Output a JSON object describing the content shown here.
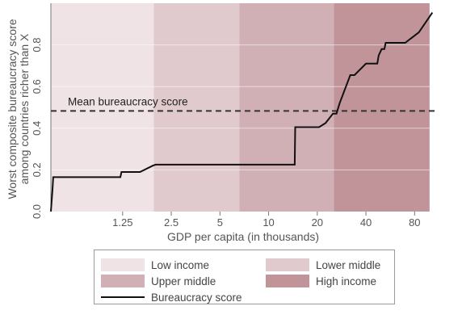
{
  "chart_data": {
    "type": "line",
    "title": "",
    "xlabel": "GDP per capita (in thousands)",
    "ylabel_lines": [
      "Worst composite bureaucracy score",
      "among countries richer than X"
    ],
    "x_scale": "log",
    "xlim": [
      0.45,
      110
    ],
    "ylim": [
      0,
      1.0
    ],
    "x_ticks": [
      1.25,
      2.5,
      5,
      10,
      20,
      40,
      80
    ],
    "x_tick_labels": [
      "1.25",
      "2.5",
      "5",
      "10",
      "20",
      "40",
      "80"
    ],
    "y_ticks": [
      0,
      0.2,
      0.4,
      0.6,
      0.8
    ],
    "y_tick_labels": [
      "0.0",
      "0.2",
      "0.4",
      "0.6",
      "0.8"
    ],
    "grid": "horizontal",
    "income_bands": [
      {
        "name": "Low income",
        "from": 0.45,
        "to": 1.95,
        "color": "#efe3e5"
      },
      {
        "name": "Lower middle",
        "from": 1.95,
        "to": 6.6,
        "color": "#e0cacd"
      },
      {
        "name": "Upper middle",
        "from": 6.6,
        "to": 25.3,
        "color": "#d0b0b5"
      },
      {
        "name": "High income",
        "from": 25.3,
        "to": 99,
        "color": "#c09499"
      }
    ],
    "series": [
      {
        "name": "Bureaucracy score",
        "color": "#111111",
        "x": [
          0.45,
          0.46,
          0.465,
          1.21,
          1.23,
          1.5,
          1.6,
          1.92,
          2.0,
          14.5,
          14.6,
          20.5,
          22.5,
          25,
          26.3,
          27.5,
          32,
          34,
          40,
          47,
          48,
          50,
          52,
          53,
          70,
          85,
          103
        ],
        "y": [
          0.0,
          0.1,
          0.165,
          0.165,
          0.19,
          0.19,
          0.19,
          0.22,
          0.225,
          0.225,
          0.405,
          0.405,
          0.425,
          0.47,
          0.47,
          0.52,
          0.655,
          0.655,
          0.71,
          0.71,
          0.75,
          0.78,
          0.78,
          0.81,
          0.81,
          0.86,
          0.955
        ]
      }
    ],
    "reference_line": {
      "label": "Mean bureaucracy score",
      "y": 0.483,
      "style": "dashed",
      "color": "#333333"
    }
  },
  "legend": {
    "entries": [
      {
        "label": "Low income",
        "kind": "swatch",
        "color": "#efe3e5"
      },
      {
        "label": "Lower middle",
        "kind": "swatch",
        "color": "#e0cacd"
      },
      {
        "label": "Upper middle",
        "kind": "swatch",
        "color": "#d0b0b5"
      },
      {
        "label": "High income",
        "kind": "swatch",
        "color": "#c09499"
      },
      {
        "label": "Bureaucracy score",
        "kind": "line",
        "color": "#111111"
      }
    ]
  }
}
